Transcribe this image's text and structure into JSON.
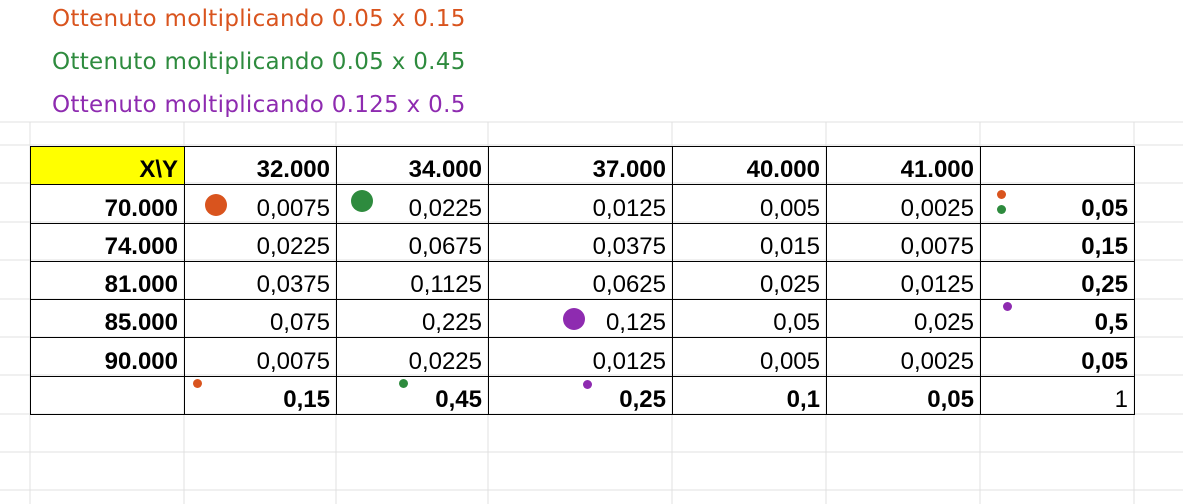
{
  "annotations": [
    {
      "text": "Ottenuto moltiplicando 0.05 x 0.15",
      "color": "#d9541e"
    },
    {
      "text": "Ottenuto moltiplicando 0.05 x 0.45",
      "color": "#2e8b3e"
    },
    {
      "text": "Ottenuto moltiplicando 0.125 x 0.5",
      "color": "#8e2bb0"
    }
  ],
  "table": {
    "corner": "X\\Y",
    "columns": [
      "32.000",
      "34.000",
      "37.000",
      "40.000",
      "41.000",
      ""
    ],
    "rows": [
      {
        "x": "70.000",
        "cells": [
          "0,0075",
          "0,0225",
          "0,0125",
          "0,005",
          "0,0025"
        ],
        "total": "0,05"
      },
      {
        "x": "74.000",
        "cells": [
          "0,0225",
          "0,0675",
          "0,0375",
          "0,015",
          "0,0075"
        ],
        "total": "0,15"
      },
      {
        "x": "81.000",
        "cells": [
          "0,0375",
          "0,1125",
          "0,0625",
          "0,025",
          "0,0125"
        ],
        "total": "0,25"
      },
      {
        "x": "85.000",
        "cells": [
          "0,075",
          "0,225",
          "0,125",
          "0,05",
          "0,025"
        ],
        "total": "0,5"
      },
      {
        "x": "90.000",
        "cells": [
          "0,0075",
          "0,0225",
          "0,0125",
          "0,005",
          "0,0025"
        ],
        "total": "0,05"
      }
    ],
    "column_totals": [
      "0,15",
      "0,45",
      "0,25",
      "0,1",
      "0,05"
    ],
    "grand_total": "1"
  },
  "colors": {
    "orange": "#d9541e",
    "green": "#2e8b3e",
    "purple": "#8e2bb0",
    "header_fill": "#ffff00",
    "gridline": "#e1e1e1"
  }
}
